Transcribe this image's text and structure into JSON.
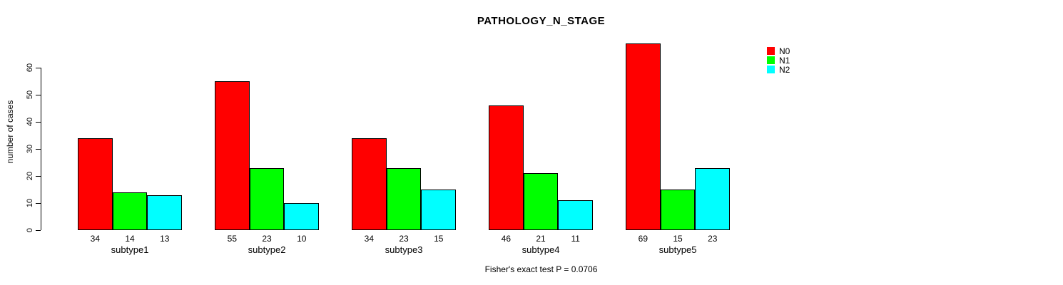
{
  "chart_data": {
    "type": "bar",
    "title": "PATHOLOGY_N_STAGE",
    "ylabel": "number of cases",
    "xlabel": "",
    "categories": [
      "subtype1",
      "subtype2",
      "subtype3",
      "subtype4",
      "subtype5"
    ],
    "series": [
      {
        "name": "N0",
        "color": "#FF0000",
        "values": [
          34,
          55,
          34,
          46,
          69
        ]
      },
      {
        "name": "N1",
        "color": "#00FF00",
        "values": [
          14,
          23,
          23,
          21,
          15
        ]
      },
      {
        "name": "N2",
        "color": "#00FFFF",
        "values": [
          13,
          10,
          15,
          11,
          23
        ]
      }
    ],
    "yticks": [
      0,
      10,
      20,
      30,
      40,
      50,
      60
    ],
    "ylim": [
      0,
      60
    ],
    "bar_value_labels": true,
    "grid": false,
    "legend_position": "top-right",
    "annotation": "Fisher's exact test P = 0.0706"
  },
  "colors": {
    "axis": "#000000",
    "background": "#FFFFFF"
  }
}
